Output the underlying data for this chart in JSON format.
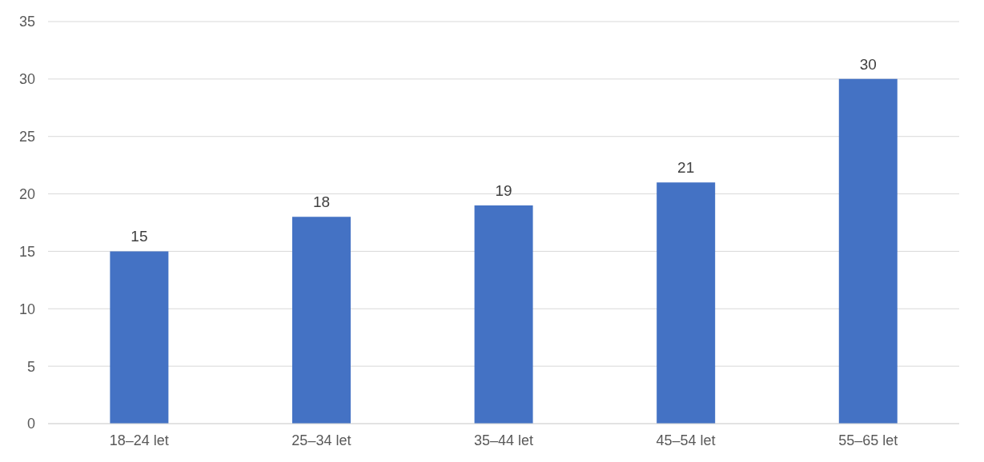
{
  "chart_data": {
    "type": "bar",
    "categories": [
      "18–24 let",
      "25–34 let",
      "35–44 let",
      "45–54 let",
      "55–65 let"
    ],
    "values": [
      15,
      18,
      19,
      21,
      30
    ],
    "color": "#4472c4",
    "ylim": [
      0,
      35
    ],
    "yticks": [
      0,
      5,
      10,
      15,
      20,
      25,
      30,
      35
    ],
    "grid": "y",
    "data_labels": true
  }
}
